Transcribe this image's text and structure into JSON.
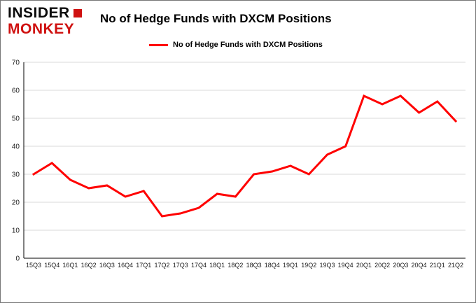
{
  "logo": {
    "line1": "INSIDER",
    "line2": "MONKEY"
  },
  "title": "No of Hedge Funds with DXCM Positions",
  "legend": {
    "label": "No of Hedge Funds with DXCM Positions",
    "color": "#ff0000"
  },
  "colors": {
    "line": "#ff0000",
    "grid": "#d9d9d9",
    "axis": "#000000",
    "tick_text": "#1a1a1a",
    "logo_red": "#cf1110"
  },
  "chart_data": {
    "type": "line",
    "title": "No of Hedge Funds with DXCM Positions",
    "xlabel": "",
    "ylabel": "",
    "categories": [
      "15Q3",
      "15Q4",
      "16Q1",
      "16Q2",
      "16Q3",
      "16Q4",
      "17Q1",
      "17Q2",
      "17Q3",
      "17Q4",
      "18Q1",
      "18Q2",
      "18Q3",
      "18Q4",
      "19Q1",
      "19Q2",
      "19Q3",
      "19Q4",
      "20Q1",
      "20Q2",
      "20Q3",
      "20Q4",
      "21Q1",
      "21Q2"
    ],
    "values": [
      30,
      34,
      28,
      25,
      26,
      22,
      24,
      15,
      16,
      18,
      23,
      22,
      30,
      31,
      33,
      30,
      37,
      40,
      58,
      55,
      58,
      52,
      56,
      49
    ],
    "ylim": [
      0,
      70
    ],
    "yticks": [
      0,
      10,
      20,
      30,
      40,
      50,
      60,
      70
    ],
    "grid": true,
    "legend_position": "top",
    "line_color": "#ff0000"
  }
}
